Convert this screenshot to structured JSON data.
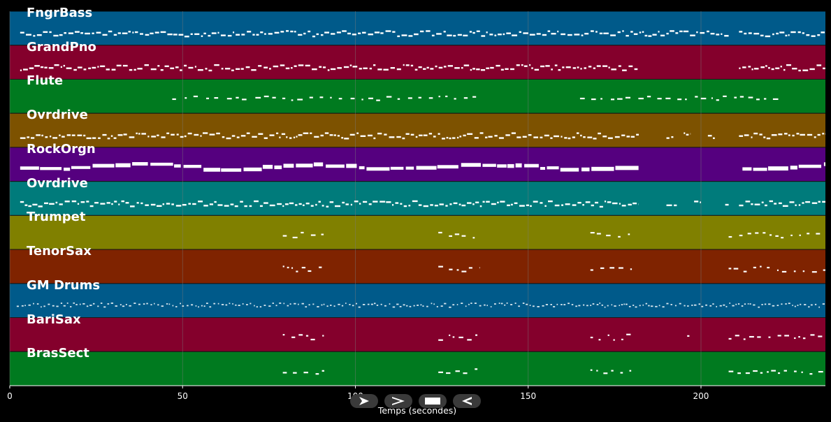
{
  "colors": {
    "background": "#000000",
    "note": "#ffffff",
    "grid": "#7a7a7a"
  },
  "xaxis": {
    "label": "Temps (secondes)",
    "ticks": [
      "0",
      "50",
      "100",
      "150",
      "200"
    ],
    "tick_values": [
      0,
      50,
      100,
      150,
      200
    ],
    "range": [
      0,
      236
    ]
  },
  "tracks": [
    {
      "name": "FngrBass",
      "color": "#005a8a",
      "pattern": "dense",
      "segments": [
        [
          3,
          208
        ],
        [
          211,
          236
        ]
      ]
    },
    {
      "name": "GrandPno",
      "color": "#84002c",
      "pattern": "dense",
      "segments": [
        [
          3,
          182
        ],
        [
          211,
          236
        ]
      ]
    },
    {
      "name": "Flute",
      "color": "#007a1f",
      "pattern": "sparse",
      "segments": [
        [
          47,
          135
        ],
        [
          165,
          224
        ]
      ]
    },
    {
      "name": "Ovrdrive",
      "color": "#7d5200",
      "pattern": "dense",
      "segments": [
        [
          3,
          182
        ],
        [
          190,
          192
        ],
        [
          195,
          197
        ],
        [
          202,
          204
        ],
        [
          211,
          236
        ]
      ]
    },
    {
      "name": "RockOrgn",
      "color": "#55007f",
      "pattern": "bars",
      "segments": [
        [
          3,
          182
        ],
        [
          212,
          236
        ]
      ]
    },
    {
      "name": "Ovrdrive",
      "color": "#007b7b",
      "pattern": "dense",
      "segments": [
        [
          3,
          182
        ],
        [
          190,
          193
        ],
        [
          198,
          200
        ],
        [
          207,
          208
        ],
        [
          211,
          236
        ]
      ]
    },
    {
      "name": "Trumpet",
      "color": "#808000",
      "pattern": "motif",
      "segments": [
        [
          79,
          91
        ],
        [
          124,
          136
        ],
        [
          168,
          180
        ],
        [
          208,
          236
        ]
      ]
    },
    {
      "name": "TenorSax",
      "color": "#7f2300",
      "pattern": "motif",
      "segments": [
        [
          79,
          91
        ],
        [
          124,
          136
        ],
        [
          168,
          180
        ],
        [
          208,
          236
        ]
      ]
    },
    {
      "name": "GM Drums",
      "color": "#005a8a",
      "pattern": "drums",
      "segments": [
        [
          2,
          236
        ]
      ]
    },
    {
      "name": "BariSax",
      "color": "#84002c",
      "pattern": "motif",
      "segments": [
        [
          79,
          91
        ],
        [
          124,
          136
        ],
        [
          168,
          180
        ],
        [
          196,
          197
        ],
        [
          208,
          236
        ]
      ]
    },
    {
      "name": "BrasSect",
      "color": "#007a1f",
      "pattern": "motif",
      "segments": [
        [
          79,
          91
        ],
        [
          124,
          136
        ],
        [
          168,
          180
        ],
        [
          208,
          236
        ]
      ]
    }
  ],
  "controls": [
    {
      "name": "play",
      "icon": "play-icon"
    },
    {
      "name": "forward",
      "icon": "chevron-right-icon"
    },
    {
      "name": "stop",
      "icon": "stop-icon"
    },
    {
      "name": "rewind",
      "icon": "rewind-icon"
    }
  ]
}
